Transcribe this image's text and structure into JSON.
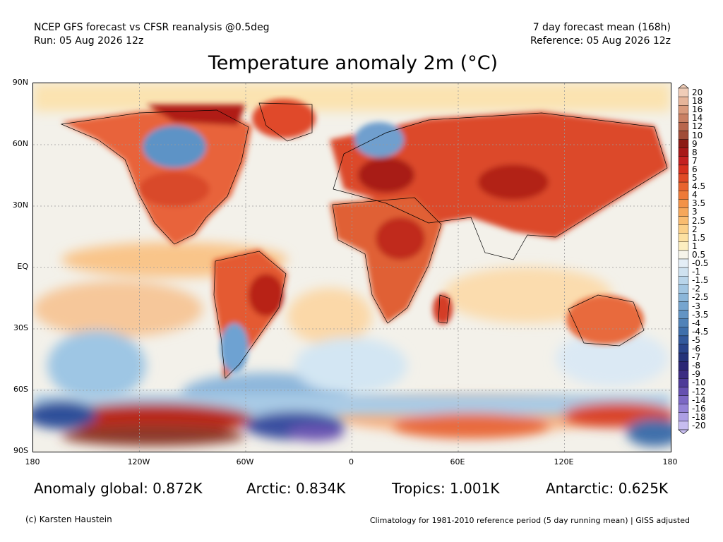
{
  "header": {
    "left_line1": "NCEP GFS forecast vs CFSR reanalysis @0.5deg",
    "left_line2": "Run: 05 Aug 2026 12z",
    "right_line1": "7 day forecast mean (168h)",
    "right_line2": "Reference: 05 Aug 2026 12z"
  },
  "title": "Temperature anomaly 2m (°C)",
  "lat_labels": [
    "90N",
    "60N",
    "30N",
    "EQ",
    "30S",
    "60S",
    "90S"
  ],
  "lon_labels": [
    "180",
    "120W",
    "60W",
    "0",
    "60E",
    "120E",
    "180"
  ],
  "colorbar": {
    "labels": [
      "20",
      "18",
      "16",
      "14",
      "12",
      "10",
      "9",
      "8",
      "7",
      "6",
      "5",
      "4.5",
      "4",
      "3.5",
      "3",
      "2.5",
      "2",
      "1.5",
      "1",
      "0.5",
      "-0.5",
      "-1",
      "-1.5",
      "-2",
      "-2.5",
      "-3",
      "-3.5",
      "-4",
      "-4.5",
      "-5",
      "-6",
      "-7",
      "-8",
      "-9",
      "-10",
      "-12",
      "-14",
      "-16",
      "-18",
      "-20"
    ],
    "colors": [
      "#f0cdb8",
      "#e6b59a",
      "#d99a7c",
      "#c98063",
      "#b8674d",
      "#a04c37",
      "#8c1a14",
      "#a81818",
      "#c42020",
      "#d6301e",
      "#e04a26",
      "#e8632e",
      "#ee7a38",
      "#f39247",
      "#f6a75a",
      "#f9bc70",
      "#fbd089",
      "#fde1a2",
      "#fdeec0",
      "#f6f4ea",
      "#e4eef6",
      "#cfe2f0",
      "#b9d5ea",
      "#a2c6e2",
      "#8bb6d9",
      "#76a5cf",
      "#6294c4",
      "#5082b8",
      "#3f6fab",
      "#33599c",
      "#2a448b",
      "#25337a",
      "#2b2775",
      "#3b2b82",
      "#4d3a98",
      "#6550b0",
      "#7c68c4",
      "#9483d6",
      "#ad9fe4",
      "#c7bdf0"
    ]
  },
  "stats": {
    "global": "Anomaly global: 0.872K",
    "arctic": "Arctic: 0.834K",
    "tropics": "Tropics: 1.001K",
    "antarctic": "Antarctic: 0.625K"
  },
  "footer": {
    "credit": "(c) Karsten Haustein",
    "note": "Climatology for 1981-2010 reference period (5 day running mean) | GISS adjusted"
  }
}
